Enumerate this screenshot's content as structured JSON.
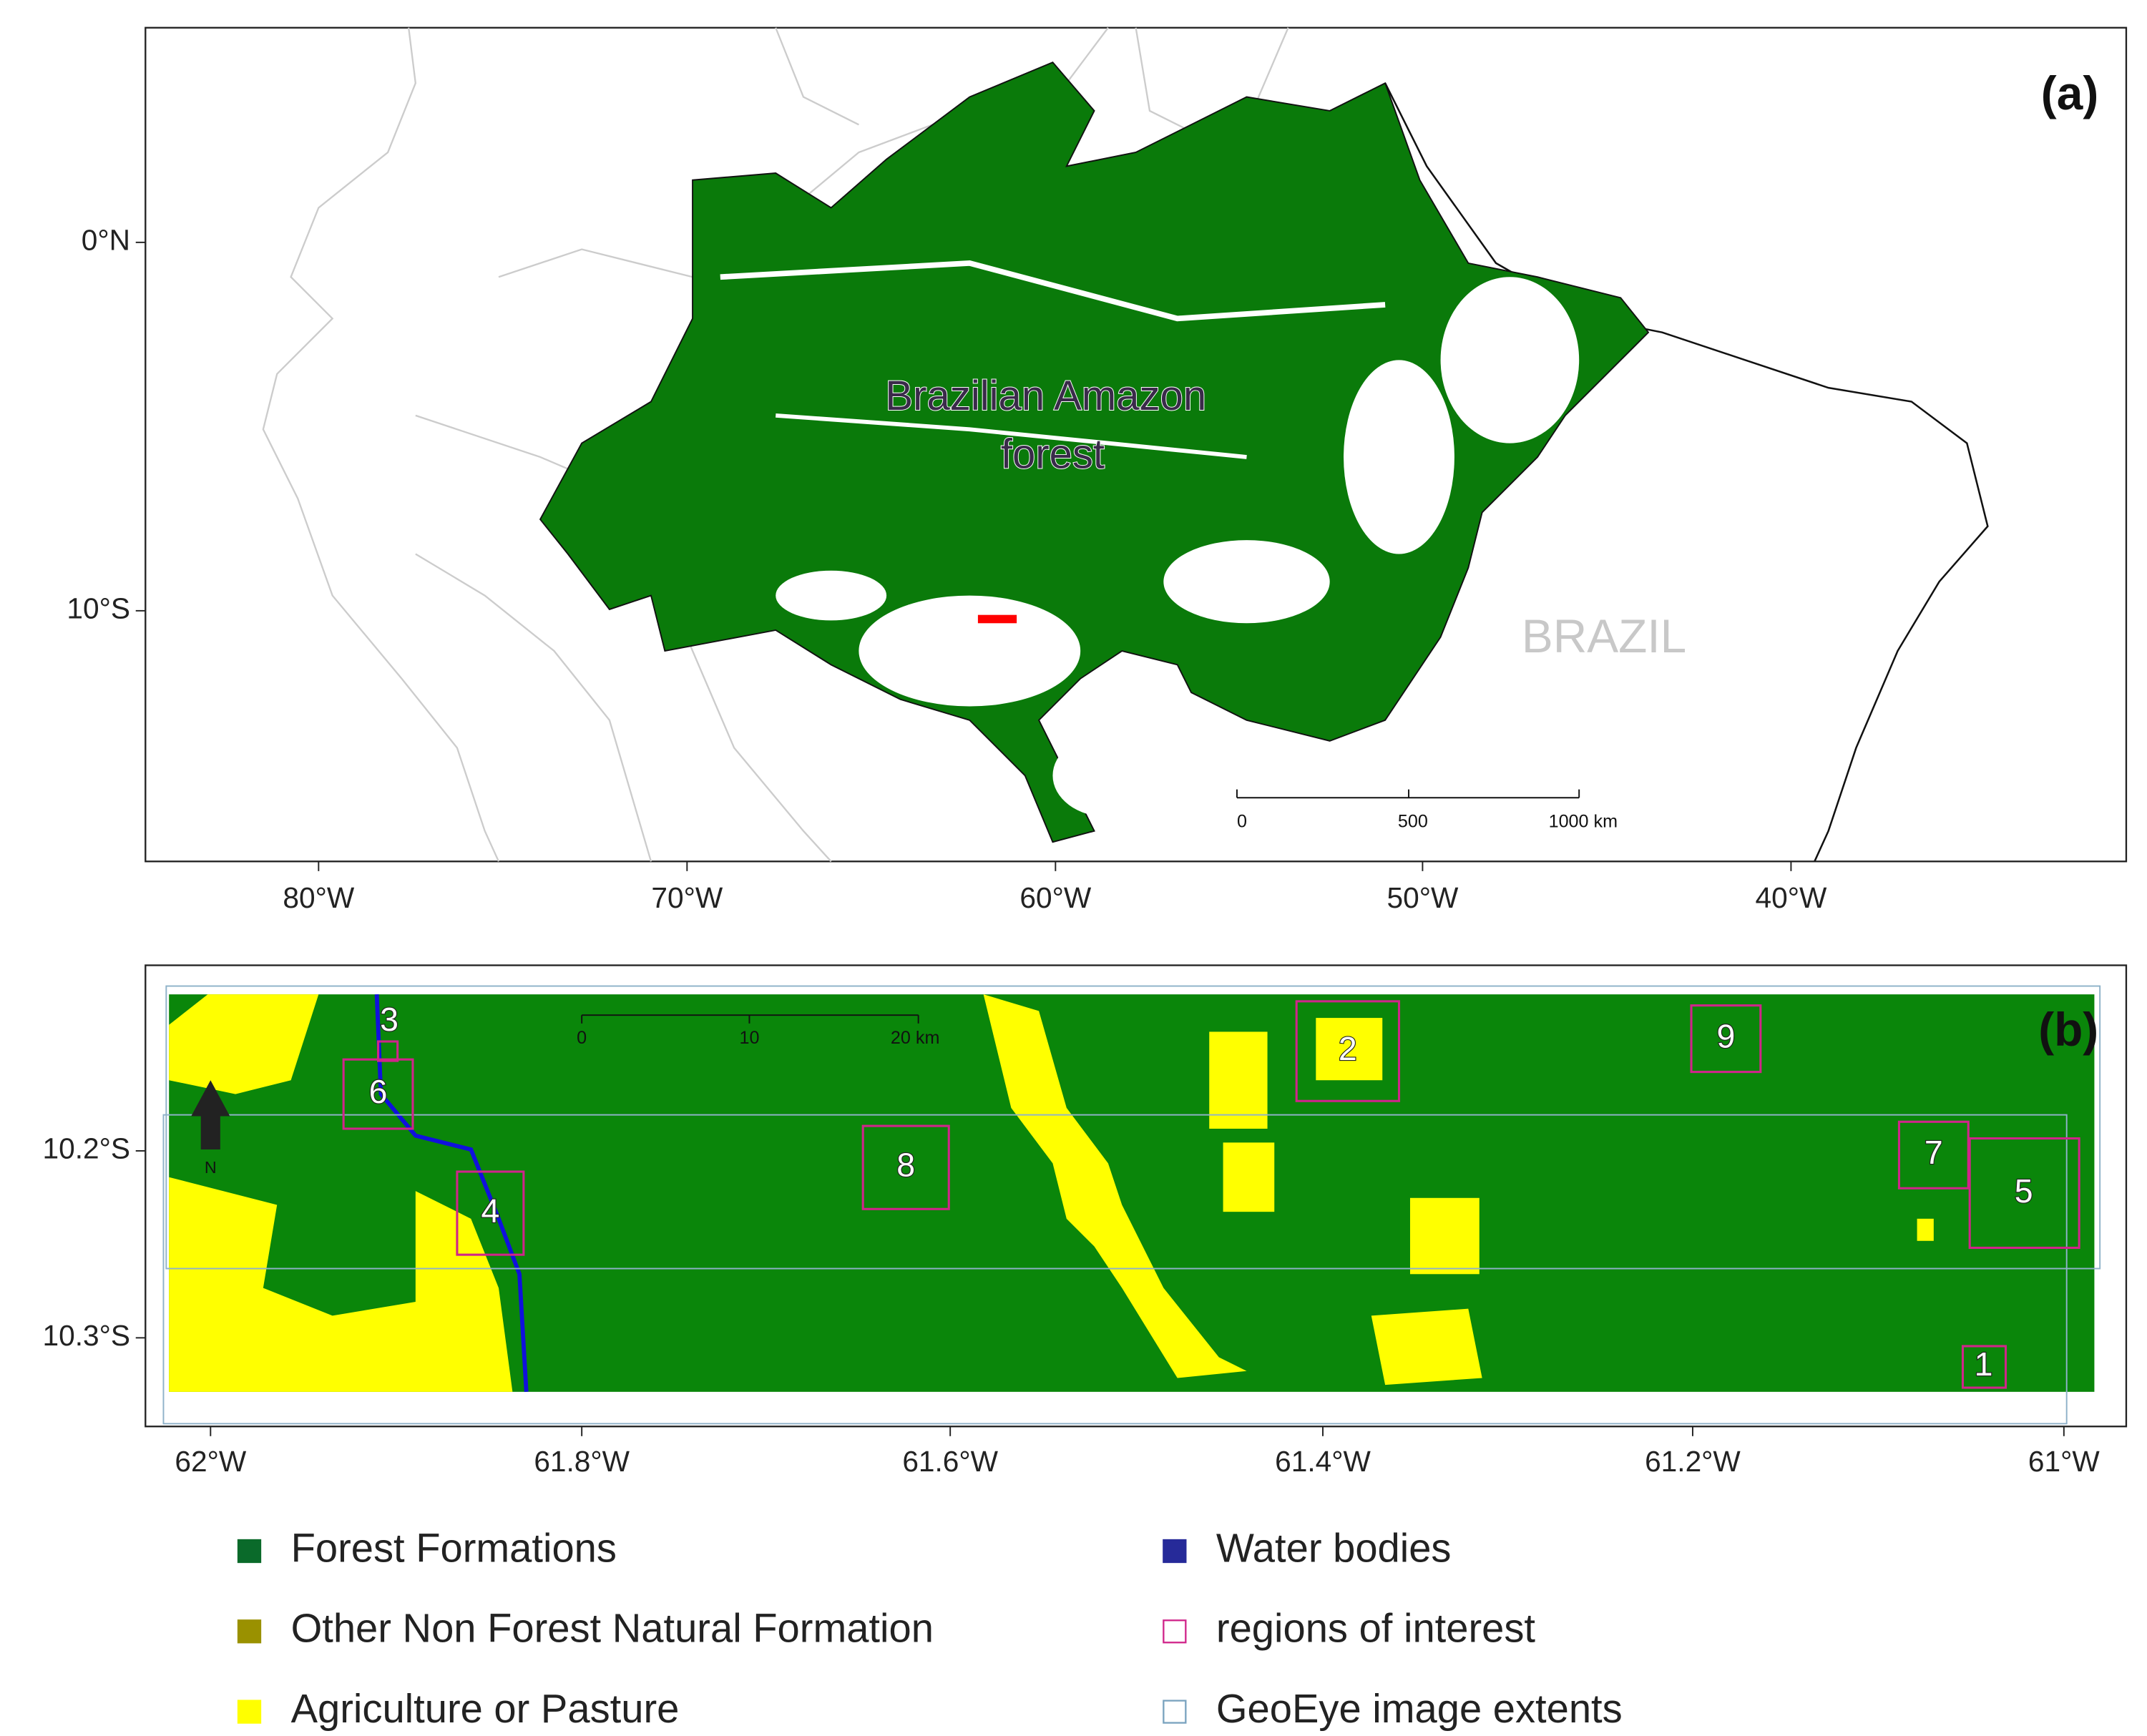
{
  "panel_a": {
    "label": "(a)",
    "region_label_lines": [
      "Brazilian Amazon",
      "forest"
    ],
    "country": "BRAZIL",
    "y_ticks": [
      "0°N",
      "10°S"
    ],
    "x_ticks": [
      "80°W",
      "70°W",
      "60°W",
      "50°W",
      "40°W"
    ],
    "scale_bar": [
      "0",
      "500",
      "1000 km"
    ]
  },
  "panel_b": {
    "label": "(b)",
    "north": "N",
    "regions": [
      "1",
      "2",
      "3",
      "4",
      "5",
      "6",
      "7",
      "8",
      "9"
    ],
    "y_ticks": [
      "10.2°S",
      "10.3°S"
    ],
    "x_ticks": [
      "62°W",
      "61.8°W",
      "61.6°W",
      "61.4°W",
      "61.2°W",
      "61°W"
    ],
    "scale_bar": [
      "0",
      "10",
      "20 km"
    ]
  },
  "legend": [
    "Forest Formations",
    "Other Non Forest Natural Formation",
    "Agriculture or Pasture",
    "Water bodies",
    "regions of interest",
    "GeoEye image extents"
  ]
}
